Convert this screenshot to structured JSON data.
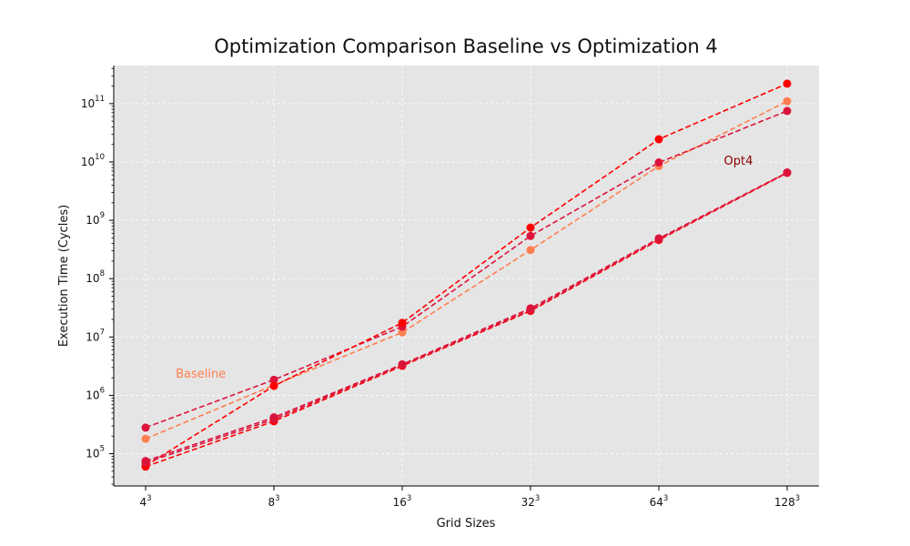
{
  "chart_data": {
    "type": "line",
    "title": "Optimization Comparison Baseline vs Optimization 4",
    "xlabel": "Grid Sizes",
    "ylabel": "Execution Time (Cycles)",
    "x_tick_labels": [
      {
        "base": "4",
        "exp": "3"
      },
      {
        "base": "8",
        "exp": "3"
      },
      {
        "base": "16",
        "exp": "3"
      },
      {
        "base": "32",
        "exp": "3"
      },
      {
        "base": "64",
        "exp": "3"
      },
      {
        "base": "128",
        "exp": "3"
      }
    ],
    "y_scale": "log",
    "y_tick_labels": [
      {
        "base": "10",
        "exp": "5",
        "value": 100000
      },
      {
        "base": "10",
        "exp": "6",
        "value": 1000000
      },
      {
        "base": "10",
        "exp": "7",
        "value": 10000000
      },
      {
        "base": "10",
        "exp": "8",
        "value": 100000000
      },
      {
        "base": "10",
        "exp": "9",
        "value": 1000000000
      },
      {
        "base": "10",
        "exp": "10",
        "value": 10000000000
      },
      {
        "base": "10",
        "exp": "11",
        "value": 100000000000
      }
    ],
    "ylim": [
      28000,
      450000000000
    ],
    "grid": true,
    "background": "#e5e5e5",
    "series": [
      {
        "color": "#ff7f50",
        "values": [
          180000,
          1500000,
          12000000,
          310000000,
          8500000000,
          110000000000
        ]
      },
      {
        "color": "#dc143c",
        "values": [
          280000,
          1850000,
          15000000,
          540000000,
          9800000000,
          75000000000
        ]
      },
      {
        "color": "#ff0000",
        "values": [
          62000,
          1450000,
          17500000,
          750000000,
          24500000000,
          220000000000
        ]
      },
      {
        "color": "#ff0000",
        "values": [
          60000,
          360000,
          3200000,
          28000000,
          460000000,
          6500000000
        ]
      },
      {
        "color": "#dc143c",
        "values": [
          75000,
          420000,
          3400000,
          31000000,
          490000000,
          6600000000
        ]
      },
      {
        "color": "#dc143c",
        "values": [
          70000,
          390000,
          3300000,
          29000000,
          475000000,
          6550000000
        ]
      }
    ],
    "annotations": [
      {
        "text": "Baseline",
        "color": "#ff7f50",
        "x_index": 0.43,
        "y": 2000000
      },
      {
        "text": "Opt4",
        "color": "#8b0000",
        "x_index": 4.62,
        "y": 9000000000
      }
    ]
  }
}
